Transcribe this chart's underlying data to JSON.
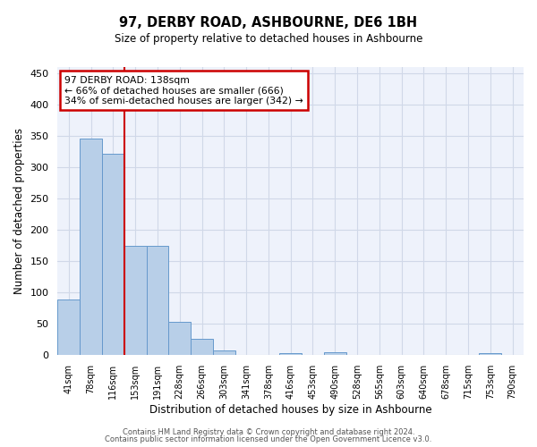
{
  "title": "97, DERBY ROAD, ASHBOURNE, DE6 1BH",
  "subtitle": "Size of property relative to detached houses in Ashbourne",
  "xlabel": "Distribution of detached houses by size in Ashbourne",
  "ylabel": "Number of detached properties",
  "bar_labels": [
    "41sqm",
    "78sqm",
    "116sqm",
    "153sqm",
    "191sqm",
    "228sqm",
    "266sqm",
    "303sqm",
    "341sqm",
    "378sqm",
    "416sqm",
    "453sqm",
    "490sqm",
    "528sqm",
    "565sqm",
    "603sqm",
    "640sqm",
    "678sqm",
    "715sqm",
    "753sqm",
    "790sqm"
  ],
  "bar_values": [
    89,
    346,
    321,
    175,
    175,
    54,
    26,
    8,
    0,
    0,
    4,
    0,
    5,
    0,
    0,
    0,
    0,
    0,
    0,
    4,
    0
  ],
  "bar_color": "#b8cfe8",
  "bar_edge_color": "#6699cc",
  "annotation_line1": "97 DERBY ROAD: 138sqm",
  "annotation_line2": "← 66% of detached houses are smaller (666)",
  "annotation_line3": "34% of semi-detached houses are larger (342) →",
  "annotation_box_color": "#cc0000",
  "vline_color": "#cc0000",
  "ylim": [
    0,
    460
  ],
  "yticks": [
    0,
    50,
    100,
    150,
    200,
    250,
    300,
    350,
    400,
    450
  ],
  "grid_color": "#d0d8e8",
  "bg_color": "#eef2fb",
  "footer_line1": "Contains HM Land Registry data © Crown copyright and database right 2024.",
  "footer_line2": "Contains public sector information licensed under the Open Government Licence v3.0."
}
